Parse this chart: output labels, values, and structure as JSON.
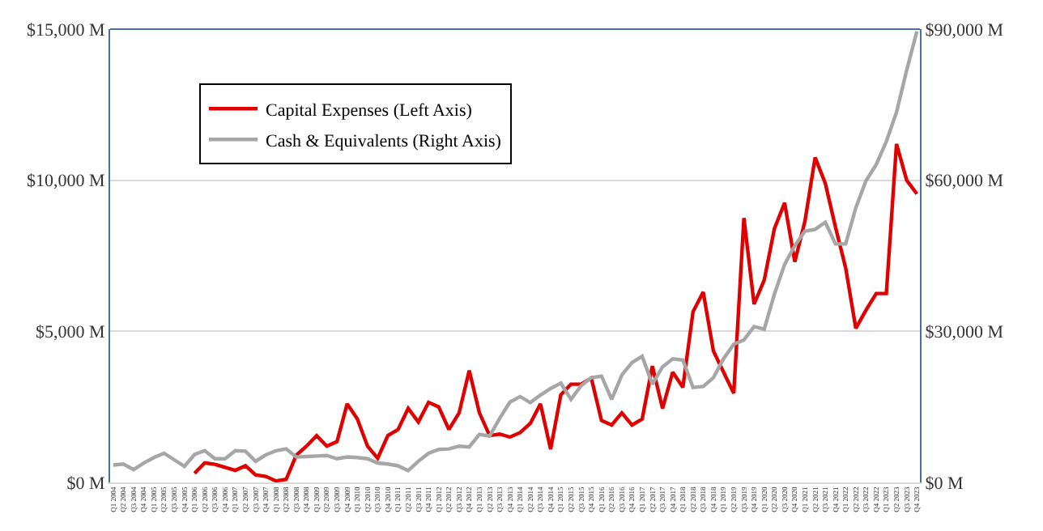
{
  "chart_data": {
    "type": "line",
    "categories": [
      "Q1 2004",
      "Q2 2004",
      "Q3 2004",
      "Q4 2004",
      "Q1 2005",
      "Q2 2005",
      "Q3 2005",
      "Q4 2005",
      "Q1 2006",
      "Q2 2006",
      "Q3 2006",
      "Q4 2006",
      "Q1 2007",
      "Q2 2007",
      "Q3 2007",
      "Q4 2007",
      "Q1 2008",
      "Q2 2008",
      "Q3 2008",
      "Q4 2008",
      "Q1 2009",
      "Q2 2009",
      "Q3 2009",
      "Q4 2009",
      "Q1 2010",
      "Q2 2010",
      "Q3 2010",
      "Q4 2010",
      "Q1 2011",
      "Q2 2011",
      "Q3 2011",
      "Q4 2011",
      "Q1 2012",
      "Q2 2012",
      "Q3 2012",
      "Q4 2012",
      "Q1 2013",
      "Q2 2013",
      "Q3 2013",
      "Q4 2013",
      "Q1 2014",
      "Q2 2014",
      "Q3 2014",
      "Q4 2014",
      "Q1 2015",
      "Q2 2015",
      "Q3 2015",
      "Q4 2015",
      "Q1 2016",
      "Q2 2016",
      "Q3 2016",
      "Q4 2016",
      "Q1 2017",
      "Q2 2017",
      "Q3 2017",
      "Q4 2017",
      "Q1 2018",
      "Q2 2018",
      "Q3 2018",
      "Q4 2018",
      "Q1 2019",
      "Q2 2019",
      "Q3 2019",
      "Q4 2019",
      "Q1 2020",
      "Q2 2020",
      "Q3 2020",
      "Q4 2020",
      "Q1 2021",
      "Q2 2021",
      "Q3 2021",
      "Q4 2021",
      "Q1 2022",
      "Q2 2022",
      "Q3 2022",
      "Q4 2022",
      "Q1 2023",
      "Q2 2023",
      "Q3 2023",
      "Q4 2023"
    ],
    "series": [
      {
        "name": "Capital Expenses (Left Axis)",
        "color": "#e00000",
        "values": [
          null,
          null,
          null,
          null,
          null,
          null,
          null,
          null,
          300,
          650,
          600,
          500,
          400,
          550,
          250,
          200,
          50,
          100,
          900,
          1200,
          1550,
          1200,
          1350,
          2600,
          2100,
          1200,
          800,
          1550,
          1750,
          2450,
          2000,
          2650,
          2500,
          1750,
          2300,
          3700,
          2300,
          1550,
          1600,
          1500,
          1650,
          1950,
          2600,
          1100,
          2900,
          3250,
          3250,
          3450,
          2050,
          1900,
          2300,
          1900,
          2100,
          3850,
          2450,
          3650,
          3150,
          5650,
          6300,
          4350,
          3650,
          2950,
          8750,
          5900,
          6700,
          8400,
          9250,
          7300,
          8650,
          10750,
          9900,
          8450,
          7100,
          5100,
          5700,
          6250,
          6250,
          11200,
          10000,
          9550
        ]
      },
      {
        "name": "Cash & Equivalents (Right Axis)",
        "color": "#a6a6a6",
        "axis": "y2",
        "values": [
          3450,
          3650,
          2550,
          3850,
          4950,
          5800,
          4500,
          3200,
          5550,
          6300,
          4700,
          4700,
          6300,
          6200,
          4200,
          5450,
          6300,
          6650,
          5050,
          5150,
          5250,
          5350,
          4700,
          5050,
          4950,
          4700,
          3850,
          3650,
          3300,
          2350,
          4200,
          5800,
          6550,
          6650,
          7200,
          7050,
          9550,
          9200,
          12750,
          15950,
          17050,
          15850,
          17350,
          18650,
          19700,
          16500,
          19200,
          20800,
          21100,
          16500,
          21300,
          23800,
          25050,
          19500,
          22950,
          24550,
          24300,
          18850,
          19050,
          20800,
          24550,
          27450,
          28300,
          30950,
          30450,
          37400,
          43300,
          47000,
          49900,
          50250,
          51650,
          47350,
          47350,
          54550,
          59900,
          63100,
          67700,
          73500,
          81850,
          89550
        ]
      }
    ],
    "ylim": [
      0,
      15000
    ],
    "yticks": [
      {
        "value": 0,
        "label": "$0 M"
      },
      {
        "value": 5000,
        "label": "$5,000 M"
      },
      {
        "value": 10000,
        "label": "$10,000 M"
      },
      {
        "value": 15000,
        "label": "$15,000 M"
      }
    ],
    "y2lim": [
      0,
      90000
    ],
    "y2ticks": [
      {
        "value": 0,
        "label": "$0 M"
      },
      {
        "value": 30000,
        "label": "$30,000 M"
      },
      {
        "value": 60000,
        "label": "$60,000 M"
      },
      {
        "value": 90000,
        "label": "$90,000 M"
      }
    ],
    "grid": "y",
    "legend": "top left"
  }
}
